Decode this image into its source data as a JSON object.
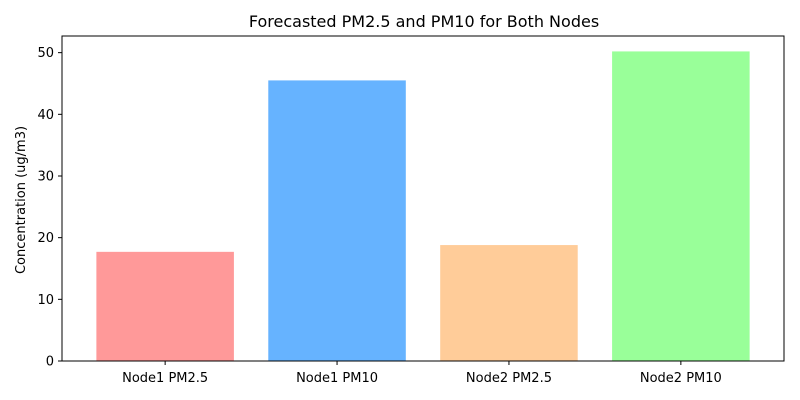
{
  "chart_data": {
    "type": "bar",
    "title": "Forecasted PM2.5 and PM10 for Both Nodes",
    "xlabel": "",
    "ylabel": "Concentration (ug/m3)",
    "categories": [
      "Node1 PM2.5",
      "Node1 PM10",
      "Node2 PM2.5",
      "Node2 PM10"
    ],
    "values": [
      17.7,
      45.5,
      18.8,
      50.2
    ],
    "colors": [
      "#ff9999",
      "#66b3ff",
      "#ffcc99",
      "#99ff99"
    ],
    "ylim": [
      0,
      52.7
    ],
    "yticks": [
      0,
      10,
      20,
      30,
      40,
      50
    ],
    "grid": false,
    "legend": "none"
  }
}
